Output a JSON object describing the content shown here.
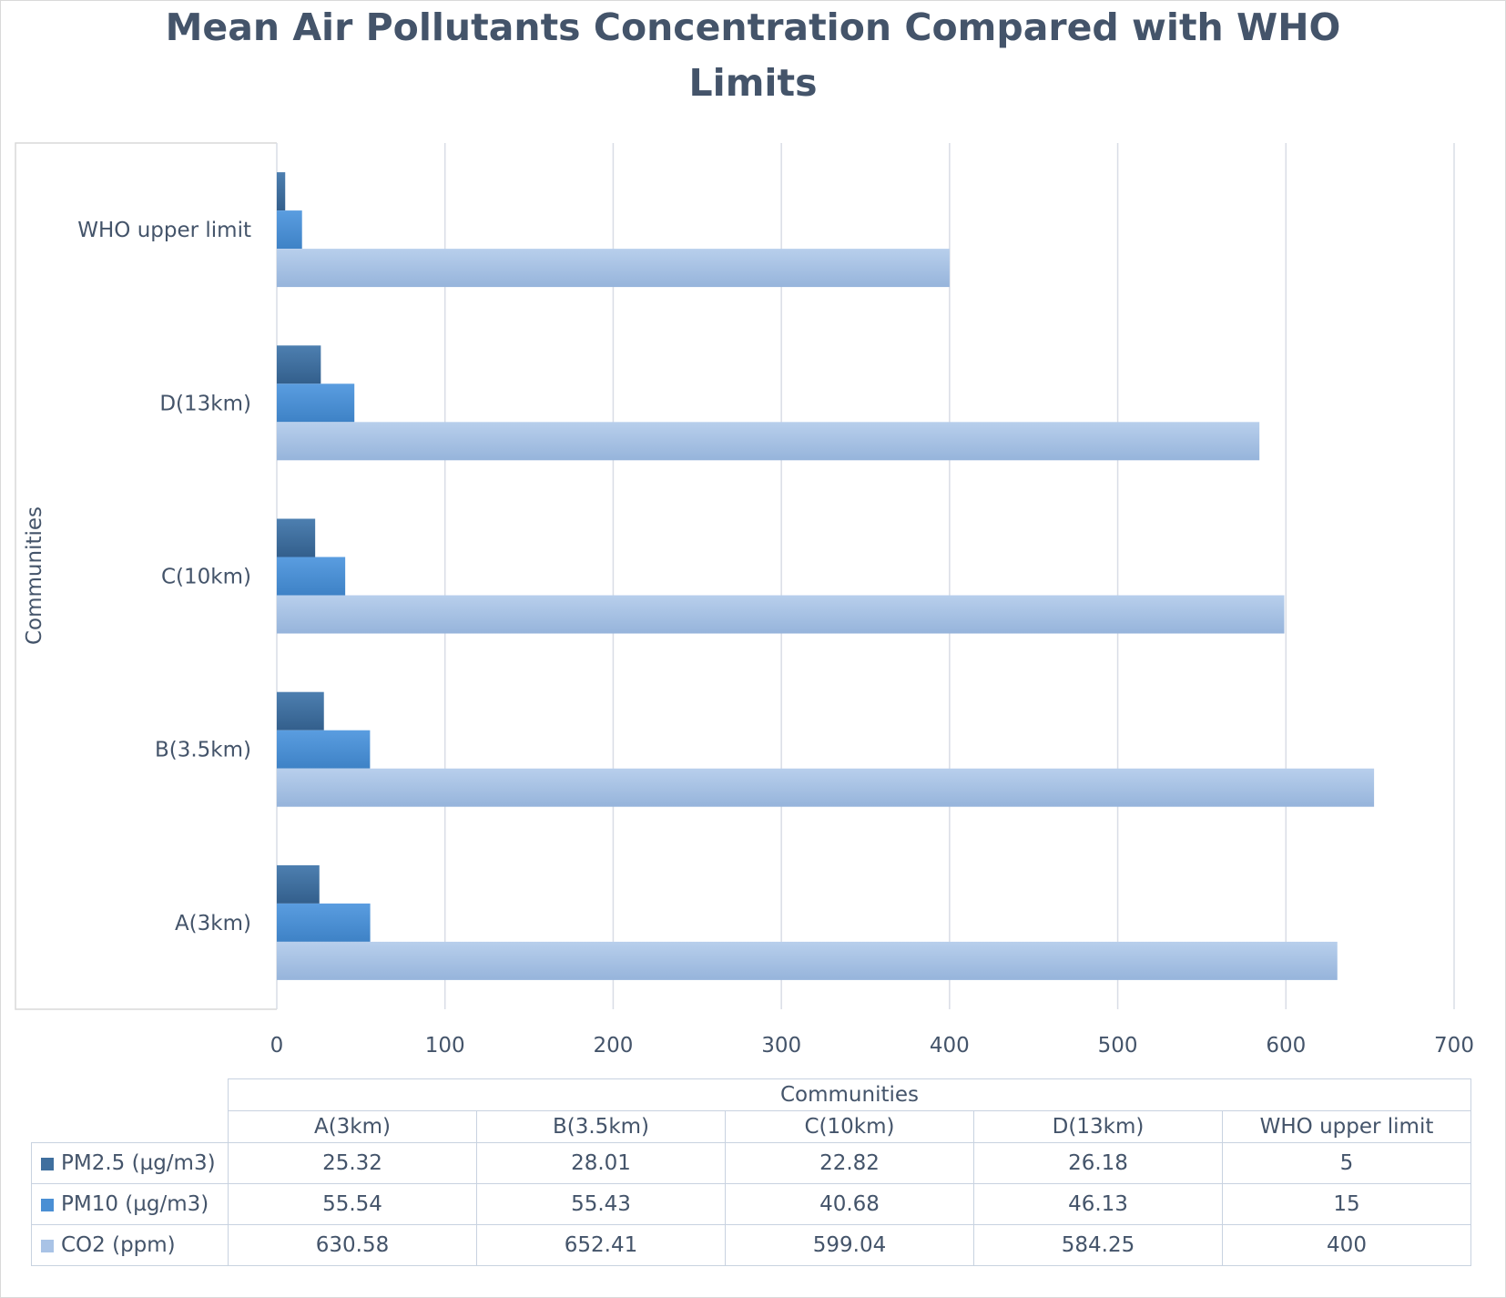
{
  "chart_data": {
    "type": "bar",
    "orientation": "horizontal",
    "title": "Mean Air Pollutants Concentration Compared with WHO Limits",
    "title_lines": [
      "Mean Air Pollutants Concentration Compared with WHO",
      "Limits"
    ],
    "ylabel": "Communities",
    "xlabel": "",
    "xlim": [
      0,
      700
    ],
    "x_ticks": [
      "0",
      "100",
      "200",
      "300",
      "400",
      "500",
      "600",
      "700"
    ],
    "grid": true,
    "legend": "data table below chart",
    "categories": [
      "A(3km)",
      "B(3.5km)",
      "C(10km)",
      "D(13km)",
      "WHO upper limit"
    ],
    "series": [
      {
        "name": "PM2.5 (µg/m3)",
        "values": [
          25.32,
          28.01,
          22.82,
          26.18,
          5
        ],
        "labels": [
          "25.32",
          "28.01",
          "22.82",
          "26.18",
          "5"
        ]
      },
      {
        "name": "PM10 (µg/m3)",
        "values": [
          55.54,
          55.43,
          40.68,
          46.13,
          15
        ],
        "labels": [
          "55.54",
          "55.43",
          "40.68",
          "46.13",
          "15"
        ]
      },
      {
        "name": "CO2 (ppm)",
        "values": [
          630.58,
          652.41,
          599.04,
          584.25,
          400
        ],
        "labels": [
          "630.58",
          "652.41",
          "599.04",
          "584.25",
          "400"
        ]
      }
    ],
    "colors": [
      "#3f6f9e",
      "#4a8fd4",
      "#a9c3e6"
    ],
    "table_header": "Communities"
  }
}
